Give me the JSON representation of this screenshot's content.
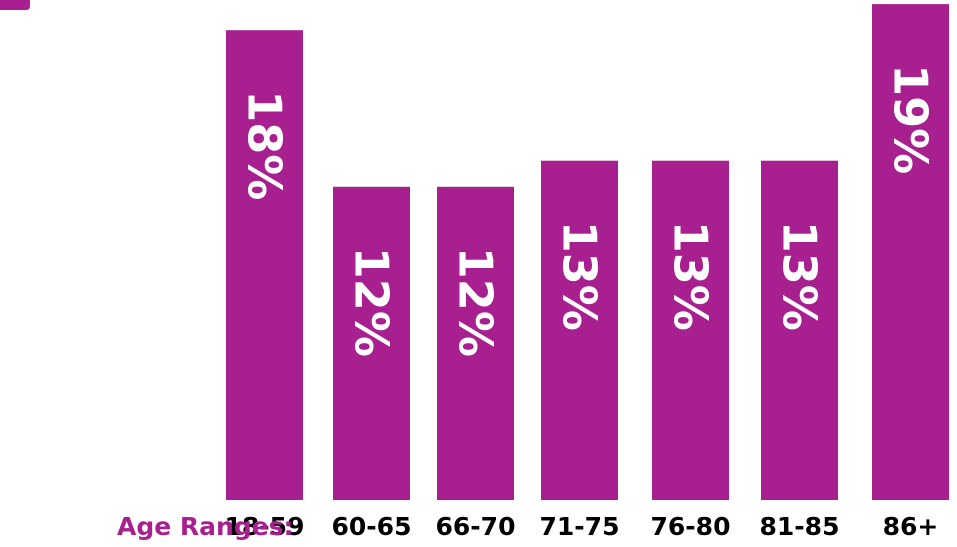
{
  "chart_data": {
    "type": "bar",
    "xlabel": "Age Ranges:",
    "categories": [
      "18-59",
      "60-65",
      "66-70",
      "71-75",
      "76-80",
      "81-85",
      "86+"
    ],
    "values": [
      18,
      12,
      12,
      13,
      13,
      13,
      19
    ],
    "data_labels": [
      "18%",
      "12%",
      "12%",
      "13%",
      "13%",
      "13%",
      "19%"
    ],
    "unit": "%",
    "bar_color": "#a82090",
    "xlabel_color": "#a82090",
    "label_color": "#ffffff",
    "label_orientation": "rotated-vertical"
  }
}
